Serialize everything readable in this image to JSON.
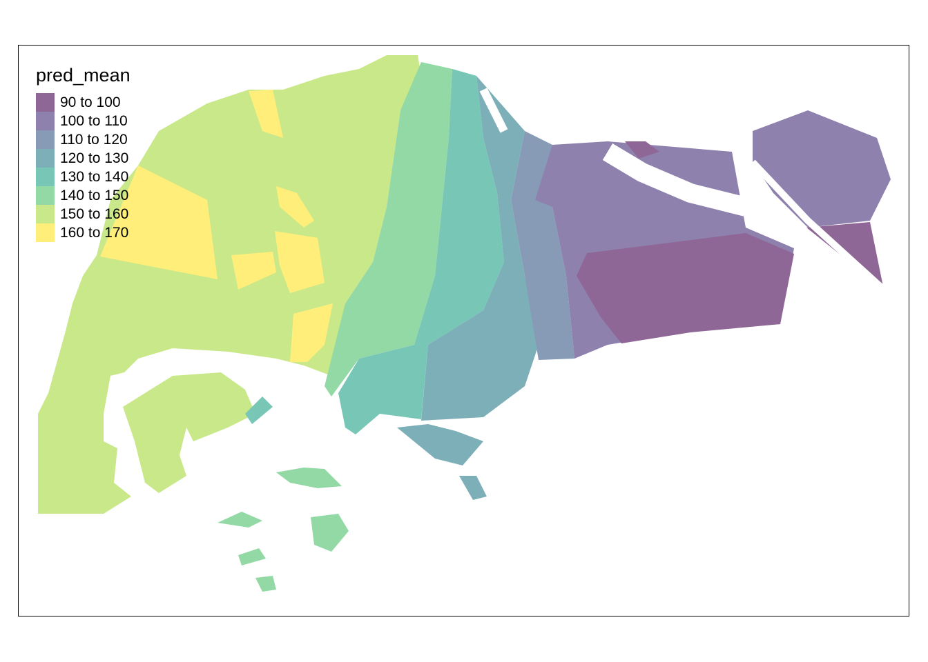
{
  "legend": {
    "title": "pred_mean",
    "items": [
      {
        "label": "90 to 100",
        "color": "#8F6796"
      },
      {
        "label": "100 to 110",
        "color": "#8E81AE"
      },
      {
        "label": "110 to 120",
        "color": "#879BB6"
      },
      {
        "label": "120 to 130",
        "color": "#7DAFB8"
      },
      {
        "label": "130 to 140",
        "color": "#77C6B6"
      },
      {
        "label": "140 to 150",
        "color": "#92D9A5"
      },
      {
        "label": "150 to 160",
        "color": "#C9E889"
      },
      {
        "label": "160 to 170",
        "color": "#FFEF7A"
      }
    ]
  }
}
